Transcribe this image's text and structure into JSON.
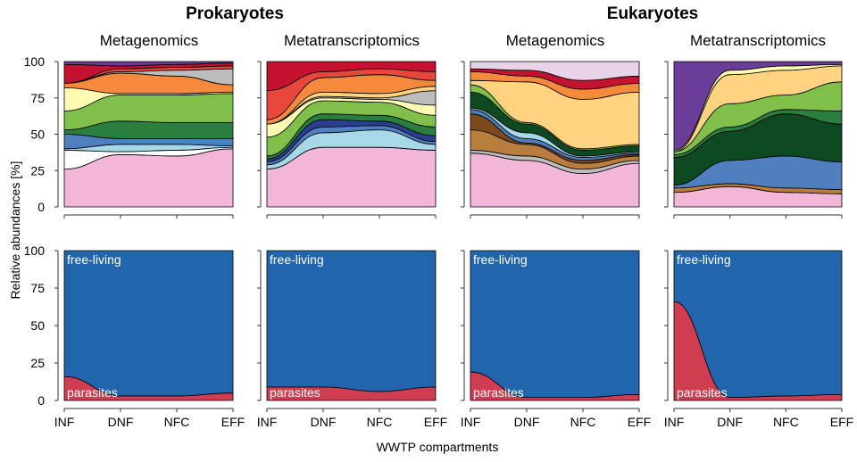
{
  "figure": {
    "group_titles": [
      "Prokaryotes",
      "Eukaryotes"
    ],
    "panel_titles": [
      "Metagenomics",
      "Metatranscriptomics",
      "Metagenomics",
      "Metatranscriptomics"
    ],
    "ylabel": "Relative abundances [%]",
    "xlabel": "WWTP compartments"
  },
  "chart_data": {
    "type": "area",
    "stacked": true,
    "x": [
      "INF",
      "DNF",
      "NFC",
      "EFF"
    ],
    "yticks": [
      0,
      25,
      50,
      75,
      100
    ],
    "ylim": [
      0,
      100
    ],
    "grid": false,
    "outline_color": "#000000",
    "top_row": {
      "panels": [
        {
          "group": "Prokaryotes",
          "title": "Metagenomics",
          "layers": [
            {
              "color": "#F2B6D8",
              "values": [
                26,
                36,
                35,
                40
              ]
            },
            {
              "color": "#FFFFFF",
              "values": [
                13,
                2,
                4,
                1
              ]
            },
            {
              "color": "#A6D8E8",
              "values": [
                1,
                5,
                4,
                1
              ]
            },
            {
              "color": "#4F7FBF",
              "values": [
                10,
                4,
                4,
                5
              ]
            },
            {
              "color": "#2A7E3E",
              "values": [
                3,
                12,
                11,
                11
              ]
            },
            {
              "color": "#7FBF4A",
              "values": [
                13,
                18,
                19,
                20
              ]
            },
            {
              "color": "#FFFBB0",
              "values": [
                16,
                1,
                1,
                1
              ]
            },
            {
              "color": "#F58A3C",
              "values": [
                3,
                14,
                12,
                5
              ]
            },
            {
              "color": "#BDBDBD",
              "values": [
                0,
                1,
                4,
                11
              ]
            },
            {
              "color": "#E8483B",
              "values": [
                0,
                2,
                2,
                2
              ]
            },
            {
              "color": "#C41230",
              "values": [
                13,
                2,
                2,
                2
              ]
            },
            {
              "color": "#6A3E98",
              "values": [
                2,
                3,
                2,
                1
              ]
            }
          ]
        },
        {
          "group": "Prokaryotes",
          "title": "Metatranscriptomics",
          "layers": [
            {
              "color": "#F2B6D8",
              "values": [
                26,
                41,
                41,
                39
              ]
            },
            {
              "color": "#A6D8E8",
              "values": [
                3,
                10,
                12,
                4
              ]
            },
            {
              "color": "#4F7FBF",
              "values": [
                2,
                4,
                3,
                2
              ]
            },
            {
              "color": "#2B3F8F",
              "values": [
                2,
                5,
                3,
                4
              ]
            },
            {
              "color": "#2A7E3E",
              "values": [
                2,
                4,
                4,
                6
              ]
            },
            {
              "color": "#7FBF4A",
              "values": [
                13,
                9,
                9,
                8
              ]
            },
            {
              "color": "#FFFBB0",
              "values": [
                9,
                2,
                2,
                7
              ]
            },
            {
              "color": "#BDBDBD",
              "values": [
                0,
                1,
                1,
                10
              ]
            },
            {
              "color": "#FFD37F",
              "values": [
                0,
                3,
                3,
                3
              ]
            },
            {
              "color": "#F58A3C",
              "values": [
                3,
                10,
                13,
                4
              ]
            },
            {
              "color": "#E8483B",
              "values": [
                20,
                4,
                4,
                6
              ]
            },
            {
              "color": "#C41230",
              "values": [
                20,
                7,
                5,
                7
              ]
            }
          ]
        },
        {
          "group": "Eukaryotes",
          "title": "Metagenomics",
          "layers": [
            {
              "color": "#F2B6D8",
              "values": [
                37,
                32,
                23,
                30
              ]
            },
            {
              "color": "#BDBDBD",
              "values": [
                2,
                3,
                3,
                2
              ]
            },
            {
              "color": "#B97D3E",
              "values": [
                14,
                8,
                4,
                3
              ]
            },
            {
              "color": "#7E4A1B",
              "values": [
                11,
                1,
                2,
                1
              ]
            },
            {
              "color": "#4F7FBF",
              "values": [
                3,
                3,
                2,
                1
              ]
            },
            {
              "color": "#A6D8E8",
              "values": [
                1,
                4,
                1,
                1
              ]
            },
            {
              "color": "#0D4A22",
              "values": [
                11,
                6,
                4,
                4
              ]
            },
            {
              "color": "#7FBF4A",
              "values": [
                5,
                1,
                1,
                1
              ]
            },
            {
              "color": "#FFD37F",
              "values": [
                3,
                28,
                34,
                36
              ]
            },
            {
              "color": "#F58A3C",
              "values": [
                6,
                4,
                7,
                6
              ]
            },
            {
              "color": "#C41230",
              "values": [
                2,
                4,
                6,
                5
              ]
            },
            {
              "color": "#E8D3E8",
              "values": [
                5,
                6,
                13,
                10
              ]
            }
          ]
        },
        {
          "group": "Eukaryotes",
          "title": "Metatranscriptomics",
          "layers": [
            {
              "color": "#F2B6D8",
              "values": [
                10,
                14,
                10,
                9
              ]
            },
            {
              "color": "#B97D3E",
              "values": [
                3,
                2,
                3,
                3
              ]
            },
            {
              "color": "#4F7FBF",
              "values": [
                2,
                16,
                22,
                19
              ]
            },
            {
              "color": "#0D4A22",
              "values": [
                19,
                20,
                29,
                26
              ]
            },
            {
              "color": "#2A7E3E",
              "values": [
                2,
                3,
                3,
                9
              ]
            },
            {
              "color": "#7FBF4A",
              "values": [
                2,
                16,
                10,
                20
              ]
            },
            {
              "color": "#FFD37F",
              "values": [
                0,
                20,
                17,
                11
              ]
            },
            {
              "color": "#FFFBB0",
              "values": [
                1,
                3,
                3,
                1
              ]
            },
            {
              "color": "#6A3E98",
              "values": [
                61,
                6,
                3,
                2
              ]
            }
          ]
        }
      ]
    },
    "bottom_row": {
      "labels": {
        "top": "free-living",
        "bottom": "parasites"
      },
      "panels": [
        {
          "group": "Prokaryotes",
          "title": "Metagenomics",
          "series": [
            {
              "name": "parasites",
              "color": "#D03C50",
              "values": [
                16,
                3,
                3,
                5
              ]
            },
            {
              "name": "free-living",
              "color": "#2166AC",
              "values": [
                84,
                97,
                97,
                95
              ]
            }
          ]
        },
        {
          "group": "Prokaryotes",
          "title": "Metatranscriptomics",
          "series": [
            {
              "name": "parasites",
              "color": "#D03C50",
              "values": [
                9,
                9,
                6,
                9
              ]
            },
            {
              "name": "free-living",
              "color": "#2166AC",
              "values": [
                91,
                91,
                94,
                91
              ]
            }
          ]
        },
        {
          "group": "Eukaryotes",
          "title": "Metagenomics",
          "series": [
            {
              "name": "parasites",
              "color": "#D03C50",
              "values": [
                19,
                2,
                2,
                4
              ]
            },
            {
              "name": "free-living",
              "color": "#2166AC",
              "values": [
                81,
                98,
                98,
                96
              ]
            }
          ]
        },
        {
          "group": "Eukaryotes",
          "title": "Metatranscriptomics",
          "series": [
            {
              "name": "parasites",
              "color": "#D03C50",
              "values": [
                66,
                2,
                3,
                4
              ]
            },
            {
              "name": "free-living",
              "color": "#2166AC",
              "values": [
                34,
                98,
                97,
                96
              ]
            }
          ]
        }
      ]
    }
  }
}
